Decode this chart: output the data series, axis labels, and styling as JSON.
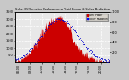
{
  "title": "Solar PV/Inverter Performance Grid Power & Solar Radiation",
  "background_color": "#c8c8c8",
  "plot_bg_color": "#e8e8e8",
  "grid_color": "white",
  "ylim_left": [
    0,
    3500
  ],
  "ylim_right": [
    0,
    1000
  ],
  "yticks_left": [
    500,
    1000,
    1500,
    2000,
    2500,
    3000,
    3500
  ],
  "yticks_right": [
    200,
    400,
    600,
    800,
    1000
  ],
  "legend_labels": [
    "Grid Power",
    "Solar Radiation"
  ],
  "legend_colors": [
    "#cc0000",
    "#0000cc"
  ],
  "grid_color_hex": "#ffffff",
  "start_hour": 5.5,
  "end_hour": 21.5,
  "num_points": 200,
  "solar_peak": 850,
  "grid_peak": 3100,
  "mid_hour": 13.0,
  "sigma_hours": 3.2,
  "title_fontsize": 2.8,
  "tick_fontsize": 2.5,
  "legend_fontsize": 2.2
}
